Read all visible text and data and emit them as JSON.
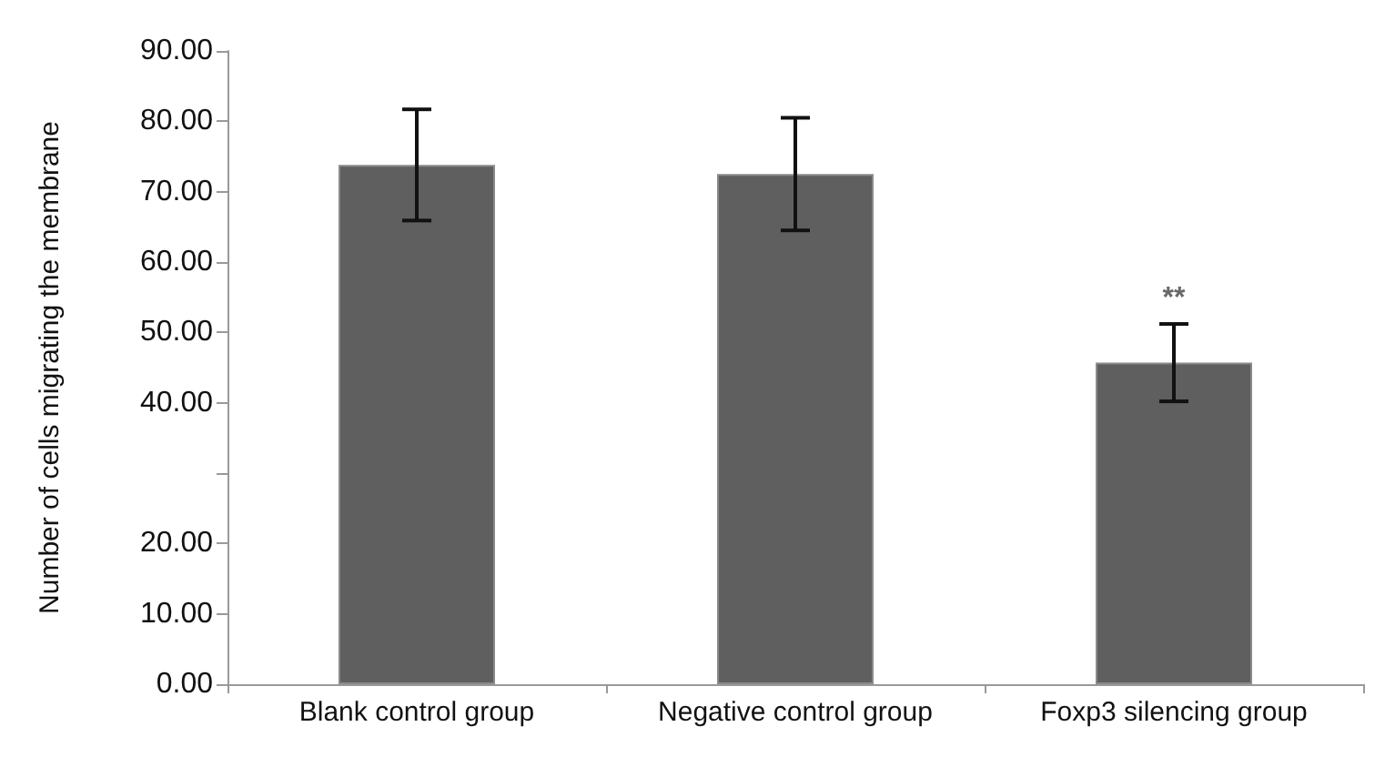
{
  "chart_data": {
    "type": "bar",
    "ylabel": "Number of cells migrating the membrane",
    "categories": [
      "Blank control group",
      "Negative control group",
      "Foxp3 silencing group"
    ],
    "values": [
      73.8,
      72.5,
      45.7
    ],
    "color": "#5f5f5f",
    "errors": [
      7.9,
      8.0,
      5.5
    ],
    "ylim": [
      0,
      90
    ],
    "yticks": [
      {
        "value": 0,
        "label": "0.00"
      },
      {
        "value": 10,
        "label": "10.00"
      },
      {
        "value": 20,
        "label": "20.00"
      },
      {
        "value": 30,
        "label": null
      },
      {
        "value": 40,
        "label": "40.00"
      },
      {
        "value": 50,
        "label": "50.00"
      },
      {
        "value": 60,
        "label": "60.00"
      },
      {
        "value": 70,
        "label": "70.00"
      },
      {
        "value": 80,
        "label": "80.00"
      },
      {
        "value": 90,
        "label": "90.00"
      }
    ],
    "annotations": [
      {
        "text": "**",
        "x": "Foxp3 silencing group",
        "y": 51.2
      }
    ],
    "grid": false
  }
}
